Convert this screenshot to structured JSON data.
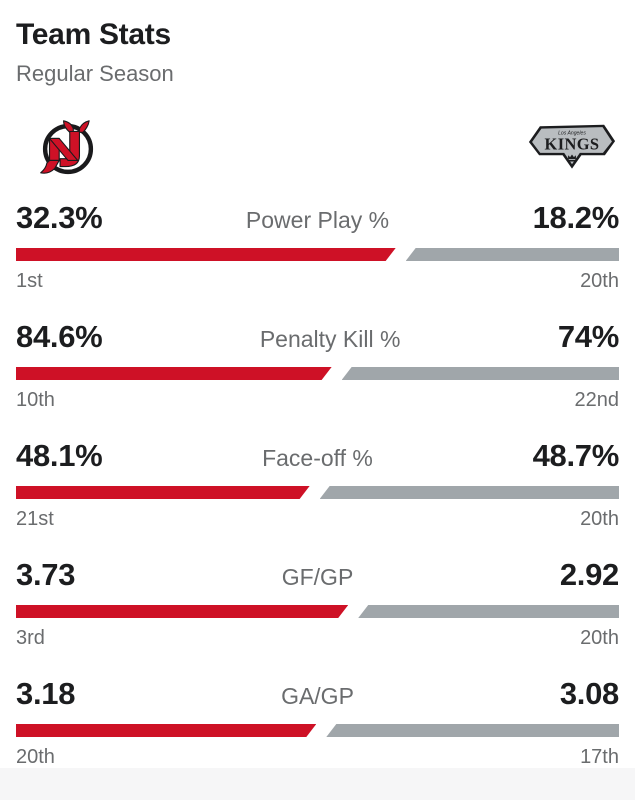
{
  "header": {
    "title": "Team Stats",
    "subtitle": "Regular Season"
  },
  "teams": {
    "home": {
      "logo_name": "new-jersey-devils-logo",
      "color": "#CE1126"
    },
    "away": {
      "logo_name": "los-angeles-kings-logo",
      "color": "#A0A6AA",
      "logo_text_city": "Los Angeles",
      "logo_text_wordmark": "KINGS"
    }
  },
  "stats": {
    "rows": [
      {
        "label": "Power Play %",
        "home_value": "32.3%",
        "away_value": "18.2%",
        "home_rank": "1st",
        "away_rank": "20th"
      },
      {
        "label": "Penalty Kill %",
        "home_value": "84.6%",
        "away_value": "74%",
        "home_rank": "10th",
        "away_rank": "22nd"
      },
      {
        "label": "Face-off %",
        "home_value": "48.1%",
        "away_value": "48.7%",
        "home_rank": "21st",
        "away_rank": "20th"
      },
      {
        "label": "GF/GP",
        "home_value": "3.73",
        "away_value": "2.92",
        "home_rank": "3rd",
        "away_rank": "20th"
      },
      {
        "label": "GA/GP",
        "home_value": "3.18",
        "away_value": "3.08",
        "home_rank": "20th",
        "away_rank": "17th"
      }
    ]
  },
  "chart_data": {
    "type": "bar",
    "title": "Team Stats",
    "subtitle": "Regular Season",
    "categories": [
      "Power Play %",
      "Penalty Kill %",
      "Face-off %",
      "GF/GP",
      "GA/GP"
    ],
    "series": [
      {
        "name": "New Jersey Devils",
        "values": [
          32.3,
          84.6,
          48.1,
          3.73,
          3.18
        ],
        "ranks": [
          "1st",
          "10th",
          "21st",
          "3rd",
          "20th"
        ],
        "color": "#CE1126",
        "side": "left"
      },
      {
        "name": "Los Angeles Kings",
        "values": [
          18.2,
          74,
          48.7,
          2.92,
          3.08
        ],
        "ranks": [
          "20th",
          "22nd",
          "20th",
          "20th",
          "17th"
        ],
        "color": "#A0A6AA",
        "side": "right"
      }
    ],
    "layout": "paired horizontal slanted bars per category; segment length proportional to value share of row total; rank labels beneath each end"
  },
  "colors": {
    "text_primary": "#1c1d1f",
    "text_secondary": "#6a6c6e",
    "home_bar": "#CE1126",
    "away_bar": "#A0A6AA",
    "footer_strip": "#f6f6f7"
  }
}
